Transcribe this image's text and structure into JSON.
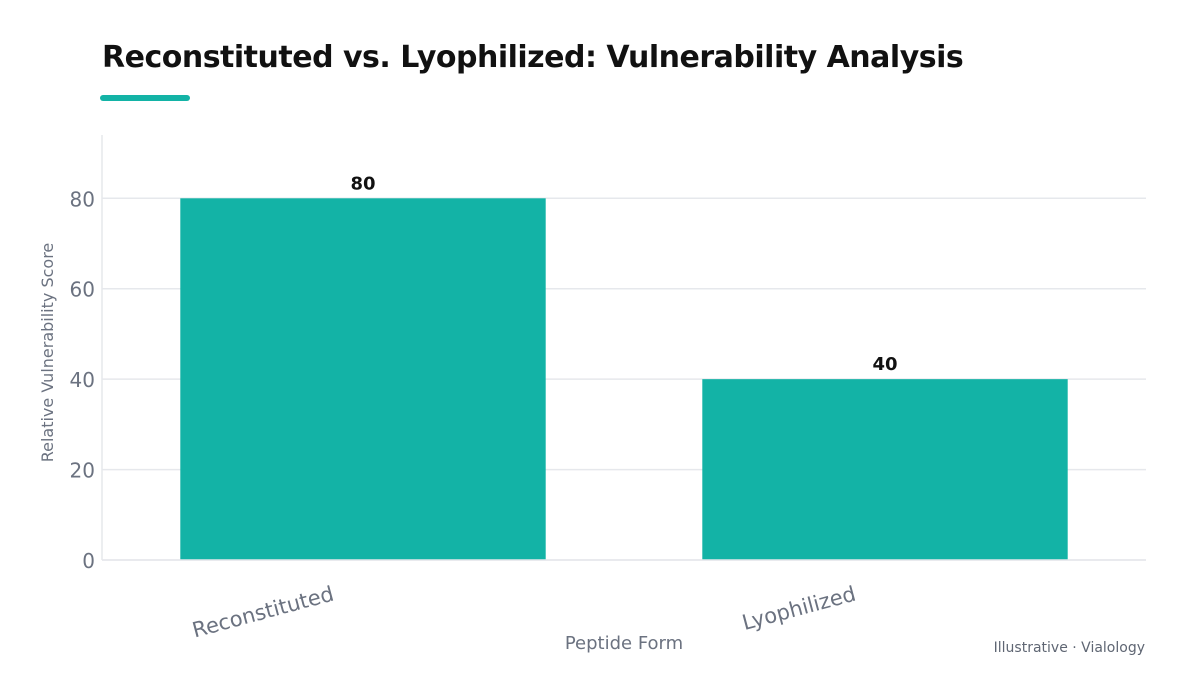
{
  "chart_data": {
    "type": "bar",
    "title": "Reconstituted vs. Lyophilized: Vulnerability Analysis",
    "categories": [
      "Reconstituted",
      "Lyophilized"
    ],
    "values": [
      80,
      40
    ],
    "data_labels": [
      "80",
      "40"
    ],
    "xlabel": "Peptide Form",
    "ylabel": "Relative Vulnerability Score",
    "ylim": [
      0,
      94
    ],
    "yticks": [
      0,
      20,
      40,
      60,
      80
    ],
    "grid": true,
    "bar_color": "#13b3a6",
    "accent_color": "#13b3a6"
  },
  "footer": {
    "note": "Illustrative · Vialology"
  }
}
